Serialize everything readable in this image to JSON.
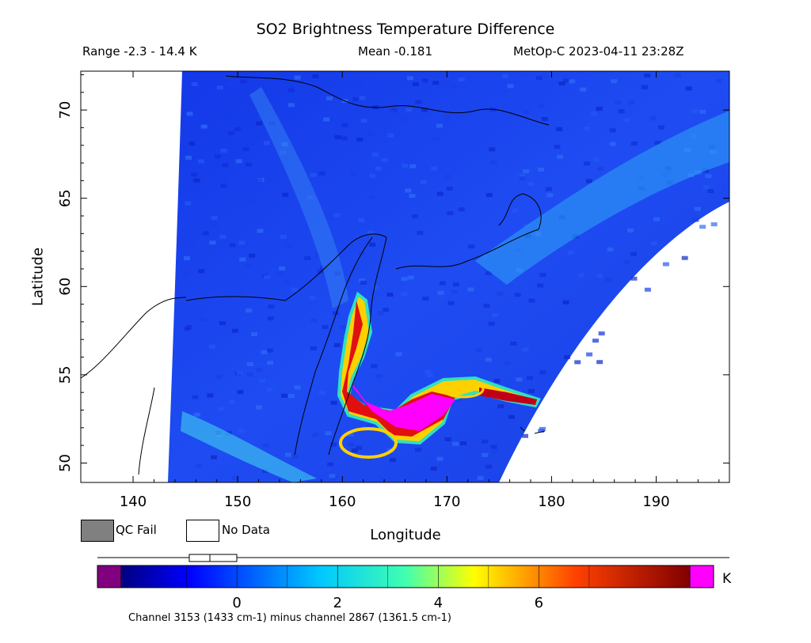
{
  "header": {
    "title": "SO2 Brightness Temperature Difference",
    "range": "Range -2.3 - 14.4 K",
    "mean": "Mean -0.181",
    "satellite": "MetOp-C 2023-04-11 23:28Z"
  },
  "axes": {
    "x_label": "Longitude",
    "y_label": "Latitude",
    "x_ticks": [
      "140",
      "150",
      "160",
      "170",
      "180",
      "190"
    ],
    "y_ticks": [
      "50",
      "55",
      "60",
      "65",
      "70"
    ],
    "x_range": [
      135,
      197
    ],
    "y_range": [
      48.9,
      72.2
    ]
  },
  "legend": {
    "qc_fail": "QC Fail",
    "no_data": "No Data",
    "qc_fail_color": "#808080",
    "no_data_color": "#ffffff"
  },
  "colorbar": {
    "unit": "K",
    "tick_labels": [
      "0",
      "2",
      "4",
      "6"
    ],
    "range": [
      -2.3,
      9.0
    ],
    "under_color": "#800080",
    "over_color": "#ff00ff",
    "footnote": "Channel 3153 (1433 cm-1) minus channel 2867 (1361.5 cm-1)"
  },
  "colors": {
    "background_field": "#1a3cf0",
    "plume_high": "#ff00ff",
    "coastline": "#000000"
  }
}
